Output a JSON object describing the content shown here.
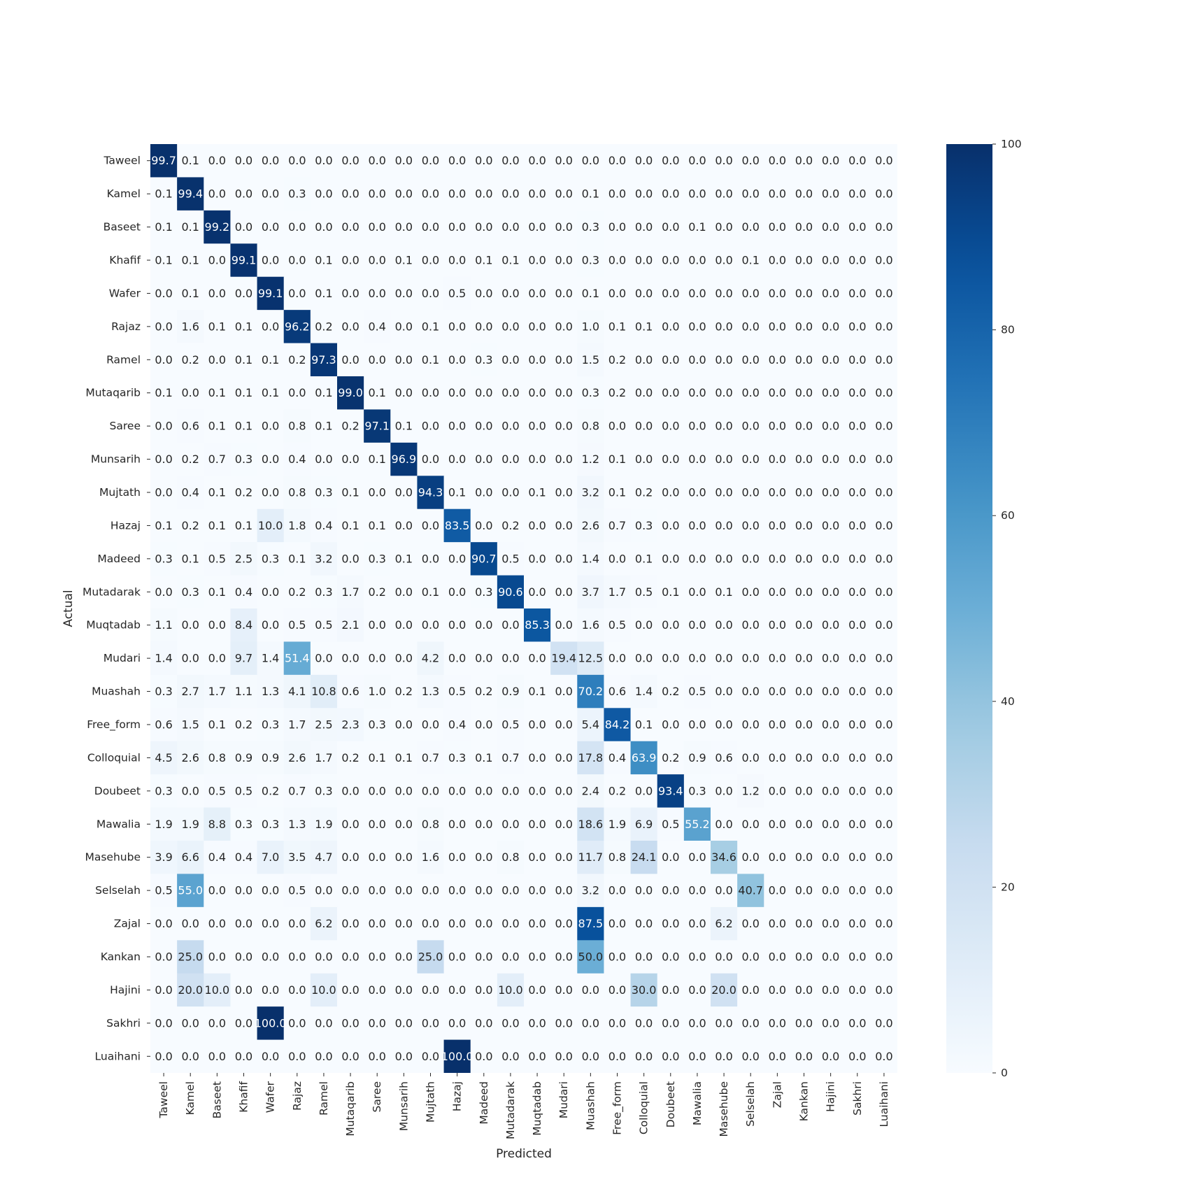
{
  "chart_data": {
    "type": "heatmap",
    "title": "",
    "xlabel": "Predicted",
    "ylabel": "Actual",
    "colormap": "Blues",
    "vmin": 0,
    "vmax": 100,
    "colorbar_ticks": [
      "0",
      "20",
      "40",
      "60",
      "80",
      "100"
    ],
    "row_labels": [
      "Taweel",
      "Kamel",
      "Baseet",
      "Khafif",
      "Wafer",
      "Rajaz",
      "Ramel",
      "Mutaqarib",
      "Saree",
      "Munsarih",
      "Mujtath",
      "Hazaj",
      "Madeed",
      "Mutadarak",
      "Muqtadab",
      "Mudari",
      "Muashah",
      "Free_form",
      "Colloquial",
      "Doubeet",
      "Mawalia",
      "Masehube",
      "Selselah",
      "Zajal",
      "Kankan",
      "Hajini",
      "Sakhri",
      "Luaihani"
    ],
    "col_labels": [
      "Taweel",
      "Kamel",
      "Baseet",
      "Khafif",
      "Wafer",
      "Rajaz",
      "Ramel",
      "Mutaqarib",
      "Saree",
      "Munsarih",
      "Mujtath",
      "Hazaj",
      "Madeed",
      "Mutadarak",
      "Muqtadab",
      "Mudari",
      "Muashah",
      "Free_form",
      "Colloquial",
      "Doubeet",
      "Mawalia",
      "Masehube",
      "Selselah",
      "Zajal",
      "Kankan",
      "Hajini",
      "Sakhri",
      "Luaihani"
    ],
    "values": [
      [
        "99.7",
        "0.1",
        "0.0",
        "0.0",
        "0.0",
        "0.0",
        "0.0",
        "0.0",
        "0.0",
        "0.0",
        "0.0",
        "0.0",
        "0.0",
        "0.0",
        "0.0",
        "0.0",
        "0.0",
        "0.0",
        "0.0",
        "0.0",
        "0.0",
        "0.0",
        "0.0",
        "0.0",
        "0.0",
        "0.0",
        "0.0",
        "0.0"
      ],
      [
        "0.1",
        "99.4",
        "0.0",
        "0.0",
        "0.0",
        "0.3",
        "0.0",
        "0.0",
        "0.0",
        "0.0",
        "0.0",
        "0.0",
        "0.0",
        "0.0",
        "0.0",
        "0.0",
        "0.1",
        "0.0",
        "0.0",
        "0.0",
        "0.0",
        "0.0",
        "0.0",
        "0.0",
        "0.0",
        "0.0",
        "0.0",
        "0.0"
      ],
      [
        "0.1",
        "0.1",
        "99.2",
        "0.0",
        "0.0",
        "0.0",
        "0.0",
        "0.0",
        "0.0",
        "0.0",
        "0.0",
        "0.0",
        "0.0",
        "0.0",
        "0.0",
        "0.0",
        "0.3",
        "0.0",
        "0.0",
        "0.0",
        "0.1",
        "0.0",
        "0.0",
        "0.0",
        "0.0",
        "0.0",
        "0.0",
        "0.0"
      ],
      [
        "0.1",
        "0.1",
        "0.0",
        "99.1",
        "0.0",
        "0.0",
        "0.1",
        "0.0",
        "0.0",
        "0.1",
        "0.0",
        "0.0",
        "0.1",
        "0.1",
        "0.0",
        "0.0",
        "0.3",
        "0.0",
        "0.0",
        "0.0",
        "0.0",
        "0.0",
        "0.1",
        "0.0",
        "0.0",
        "0.0",
        "0.0",
        "0.0"
      ],
      [
        "0.0",
        "0.1",
        "0.0",
        "0.0",
        "99.1",
        "0.0",
        "0.1",
        "0.0",
        "0.0",
        "0.0",
        "0.0",
        "0.5",
        "0.0",
        "0.0",
        "0.0",
        "0.0",
        "0.1",
        "0.0",
        "0.0",
        "0.0",
        "0.0",
        "0.0",
        "0.0",
        "0.0",
        "0.0",
        "0.0",
        "0.0",
        "0.0"
      ],
      [
        "0.0",
        "1.6",
        "0.1",
        "0.1",
        "0.0",
        "96.2",
        "0.2",
        "0.0",
        "0.4",
        "0.0",
        "0.1",
        "0.0",
        "0.0",
        "0.0",
        "0.0",
        "0.0",
        "1.0",
        "0.1",
        "0.1",
        "0.0",
        "0.0",
        "0.0",
        "0.0",
        "0.0",
        "0.0",
        "0.0",
        "0.0",
        "0.0"
      ],
      [
        "0.0",
        "0.2",
        "0.0",
        "0.1",
        "0.1",
        "0.2",
        "97.3",
        "0.0",
        "0.0",
        "0.0",
        "0.1",
        "0.0",
        "0.3",
        "0.0",
        "0.0",
        "0.0",
        "1.5",
        "0.2",
        "0.0",
        "0.0",
        "0.0",
        "0.0",
        "0.0",
        "0.0",
        "0.0",
        "0.0",
        "0.0",
        "0.0"
      ],
      [
        "0.1",
        "0.0",
        "0.1",
        "0.1",
        "0.1",
        "0.0",
        "0.1",
        "99.0",
        "0.1",
        "0.0",
        "0.0",
        "0.0",
        "0.0",
        "0.0",
        "0.0",
        "0.0",
        "0.3",
        "0.2",
        "0.0",
        "0.0",
        "0.0",
        "0.0",
        "0.0",
        "0.0",
        "0.0",
        "0.0",
        "0.0",
        "0.0"
      ],
      [
        "0.0",
        "0.6",
        "0.1",
        "0.1",
        "0.0",
        "0.8",
        "0.1",
        "0.2",
        "97.1",
        "0.1",
        "0.0",
        "0.0",
        "0.0",
        "0.0",
        "0.0",
        "0.0",
        "0.8",
        "0.0",
        "0.0",
        "0.0",
        "0.0",
        "0.0",
        "0.0",
        "0.0",
        "0.0",
        "0.0",
        "0.0",
        "0.0"
      ],
      [
        "0.0",
        "0.2",
        "0.7",
        "0.3",
        "0.0",
        "0.4",
        "0.0",
        "0.0",
        "0.1",
        "96.9",
        "0.0",
        "0.0",
        "0.0",
        "0.0",
        "0.0",
        "0.0",
        "1.2",
        "0.1",
        "0.0",
        "0.0",
        "0.0",
        "0.0",
        "0.0",
        "0.0",
        "0.0",
        "0.0",
        "0.0",
        "0.0"
      ],
      [
        "0.0",
        "0.4",
        "0.1",
        "0.2",
        "0.0",
        "0.8",
        "0.3",
        "0.1",
        "0.0",
        "0.0",
        "94.3",
        "0.1",
        "0.0",
        "0.0",
        "0.1",
        "0.0",
        "3.2",
        "0.1",
        "0.2",
        "0.0",
        "0.0",
        "0.0",
        "0.0",
        "0.0",
        "0.0",
        "0.0",
        "0.0",
        "0.0"
      ],
      [
        "0.1",
        "0.2",
        "0.1",
        "0.1",
        "10.0",
        "1.8",
        "0.4",
        "0.1",
        "0.1",
        "0.0",
        "0.0",
        "83.5",
        "0.0",
        "0.2",
        "0.0",
        "0.0",
        "2.6",
        "0.7",
        "0.3",
        "0.0",
        "0.0",
        "0.0",
        "0.0",
        "0.0",
        "0.0",
        "0.0",
        "0.0",
        "0.0"
      ],
      [
        "0.3",
        "0.1",
        "0.5",
        "2.5",
        "0.3",
        "0.1",
        "3.2",
        "0.0",
        "0.3",
        "0.1",
        "0.0",
        "0.0",
        "90.7",
        "0.5",
        "0.0",
        "0.0",
        "1.4",
        "0.0",
        "0.1",
        "0.0",
        "0.0",
        "0.0",
        "0.0",
        "0.0",
        "0.0",
        "0.0",
        "0.0",
        "0.0"
      ],
      [
        "0.0",
        "0.3",
        "0.1",
        "0.4",
        "0.0",
        "0.2",
        "0.3",
        "1.7",
        "0.2",
        "0.0",
        "0.1",
        "0.0",
        "0.3",
        "90.6",
        "0.0",
        "0.0",
        "3.7",
        "1.7",
        "0.5",
        "0.1",
        "0.0",
        "0.1",
        "0.0",
        "0.0",
        "0.0",
        "0.0",
        "0.0",
        "0.0"
      ],
      [
        "1.1",
        "0.0",
        "0.0",
        "8.4",
        "0.0",
        "0.5",
        "0.5",
        "2.1",
        "0.0",
        "0.0",
        "0.0",
        "0.0",
        "0.0",
        "0.0",
        "85.3",
        "0.0",
        "1.6",
        "0.5",
        "0.0",
        "0.0",
        "0.0",
        "0.0",
        "0.0",
        "0.0",
        "0.0",
        "0.0",
        "0.0",
        "0.0"
      ],
      [
        "1.4",
        "0.0",
        "0.0",
        "9.7",
        "1.4",
        "51.4",
        "0.0",
        "0.0",
        "0.0",
        "0.0",
        "4.2",
        "0.0",
        "0.0",
        "0.0",
        "0.0",
        "19.4",
        "12.5",
        "0.0",
        "0.0",
        "0.0",
        "0.0",
        "0.0",
        "0.0",
        "0.0",
        "0.0",
        "0.0",
        "0.0",
        "0.0"
      ],
      [
        "0.3",
        "2.7",
        "1.7",
        "1.1",
        "1.3",
        "4.1",
        "10.8",
        "0.6",
        "1.0",
        "0.2",
        "1.3",
        "0.5",
        "0.2",
        "0.9",
        "0.1",
        "0.0",
        "70.2",
        "0.6",
        "1.4",
        "0.2",
        "0.5",
        "0.0",
        "0.0",
        "0.0",
        "0.0",
        "0.0",
        "0.0",
        "0.0"
      ],
      [
        "0.6",
        "1.5",
        "0.1",
        "0.2",
        "0.3",
        "1.7",
        "2.5",
        "2.3",
        "0.3",
        "0.0",
        "0.0",
        "0.4",
        "0.0",
        "0.5",
        "0.0",
        "0.0",
        "5.4",
        "84.2",
        "0.1",
        "0.0",
        "0.0",
        "0.0",
        "0.0",
        "0.0",
        "0.0",
        "0.0",
        "0.0",
        "0.0"
      ],
      [
        "4.5",
        "2.6",
        "0.8",
        "0.9",
        "0.9",
        "2.6",
        "1.7",
        "0.2",
        "0.1",
        "0.1",
        "0.7",
        "0.3",
        "0.1",
        "0.7",
        "0.0",
        "0.0",
        "17.8",
        "0.4",
        "63.9",
        "0.2",
        "0.9",
        "0.6",
        "0.0",
        "0.0",
        "0.0",
        "0.0",
        "0.0",
        "0.0"
      ],
      [
        "0.3",
        "0.0",
        "0.5",
        "0.5",
        "0.2",
        "0.7",
        "0.3",
        "0.0",
        "0.0",
        "0.0",
        "0.0",
        "0.0",
        "0.0",
        "0.0",
        "0.0",
        "0.0",
        "2.4",
        "0.2",
        "0.0",
        "93.4",
        "0.3",
        "0.0",
        "1.2",
        "0.0",
        "0.0",
        "0.0",
        "0.0",
        "0.0"
      ],
      [
        "1.9",
        "1.9",
        "8.8",
        "0.3",
        "0.3",
        "1.3",
        "1.9",
        "0.0",
        "0.0",
        "0.0",
        "0.8",
        "0.0",
        "0.0",
        "0.0",
        "0.0",
        "0.0",
        "18.6",
        "1.9",
        "6.9",
        "0.5",
        "55.2",
        "0.0",
        "0.0",
        "0.0",
        "0.0",
        "0.0",
        "0.0",
        "0.0"
      ],
      [
        "3.9",
        "6.6",
        "0.4",
        "0.4",
        "7.0",
        "3.5",
        "4.7",
        "0.0",
        "0.0",
        "0.0",
        "1.6",
        "0.0",
        "0.0",
        "0.8",
        "0.0",
        "0.0",
        "11.7",
        "0.8",
        "24.1",
        "0.0",
        "0.0",
        "34.6",
        "0.0",
        "0.0",
        "0.0",
        "0.0",
        "0.0",
        "0.0"
      ],
      [
        "0.5",
        "55.0",
        "0.0",
        "0.0",
        "0.0",
        "0.5",
        "0.0",
        "0.0",
        "0.0",
        "0.0",
        "0.0",
        "0.0",
        "0.0",
        "0.0",
        "0.0",
        "0.0",
        "3.2",
        "0.0",
        "0.0",
        "0.0",
        "0.0",
        "0.0",
        "40.7",
        "0.0",
        "0.0",
        "0.0",
        "0.0",
        "0.0"
      ],
      [
        "0.0",
        "0.0",
        "0.0",
        "0.0",
        "0.0",
        "0.0",
        "6.2",
        "0.0",
        "0.0",
        "0.0",
        "0.0",
        "0.0",
        "0.0",
        "0.0",
        "0.0",
        "0.0",
        "87.5",
        "0.0",
        "0.0",
        "0.0",
        "0.0",
        "6.2",
        "0.0",
        "0.0",
        "0.0",
        "0.0",
        "0.0",
        "0.0"
      ],
      [
        "0.0",
        "25.0",
        "0.0",
        "0.0",
        "0.0",
        "0.0",
        "0.0",
        "0.0",
        "0.0",
        "0.0",
        "25.0",
        "0.0",
        "0.0",
        "0.0",
        "0.0",
        "0.0",
        "50.0",
        "0.0",
        "0.0",
        "0.0",
        "0.0",
        "0.0",
        "0.0",
        "0.0",
        "0.0",
        "0.0",
        "0.0",
        "0.0"
      ],
      [
        "0.0",
        "20.0",
        "10.0",
        "0.0",
        "0.0",
        "0.0",
        "10.0",
        "0.0",
        "0.0",
        "0.0",
        "0.0",
        "0.0",
        "0.0",
        "10.0",
        "0.0",
        "0.0",
        "0.0",
        "0.0",
        "30.0",
        "0.0",
        "0.0",
        "20.0",
        "0.0",
        "0.0",
        "0.0",
        "0.0",
        "0.0",
        "0.0"
      ],
      [
        "0.0",
        "0.0",
        "0.0",
        "0.0",
        "100.0",
        "0.0",
        "0.0",
        "0.0",
        "0.0",
        "0.0",
        "0.0",
        "0.0",
        "0.0",
        "0.0",
        "0.0",
        "0.0",
        "0.0",
        "0.0",
        "0.0",
        "0.0",
        "0.0",
        "0.0",
        "0.0",
        "0.0",
        "0.0",
        "0.0",
        "0.0",
        "0.0"
      ],
      [
        "0.0",
        "0.0",
        "0.0",
        "0.0",
        "0.0",
        "0.0",
        "0.0",
        "0.0",
        "0.0",
        "0.0",
        "0.0",
        "100.0",
        "0.0",
        "0.0",
        "0.0",
        "0.0",
        "0.0",
        "0.0",
        "0.0",
        "0.0",
        "0.0",
        "0.0",
        "0.0",
        "0.0",
        "0.0",
        "0.0",
        "0.0",
        "0.0"
      ]
    ]
  }
}
